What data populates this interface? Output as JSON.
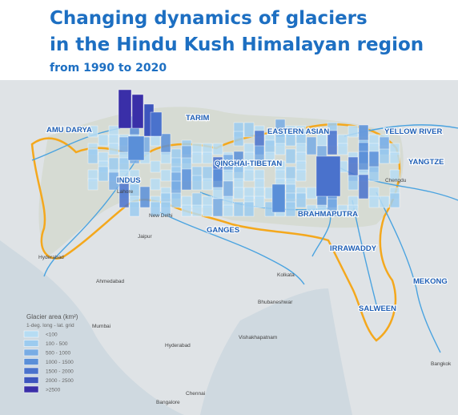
{
  "header": {
    "title_line1": "Changing dynamics of glaciers",
    "title_line2": "in the Hindu Kush Himalayan region",
    "subtitle": "from 1990 to 2020"
  },
  "basins": [
    "AMU DARYA",
    "TARIM",
    "EASTERN ASIAN",
    "YELLOW RIVER",
    "QINGHAI-TIBETAN",
    "YANGTZE",
    "INDUS",
    "BRAHMAPUTRA",
    "GANGES",
    "IRRAWADDY",
    "MEKONG",
    "SALWEEN"
  ],
  "cities": [
    "Lahore",
    "New Delhi",
    "Jaipur",
    "Hyderabad",
    "Ahmedabad",
    "Kolkata",
    "Bhubaneshwar",
    "Mumbai",
    "Hyderabad",
    "Vishakhapatnam",
    "Chennai",
    "Bangalore",
    "Bangkok",
    "Chengdu"
  ],
  "legend": {
    "title": "Glacier area (km²)",
    "note": "1-deg. long - lat. grid",
    "classes": [
      {
        "label": "<100",
        "color": "#b6dcf3"
      },
      {
        "label": "100 - 500",
        "color": "#9ccbef"
      },
      {
        "label": "500 - 1000",
        "color": "#78ace4"
      },
      {
        "label": "1000 - 1500",
        "color": "#5a8fd8"
      },
      {
        "label": "1500 - 2000",
        "color": "#4a72cc"
      },
      {
        "label": "2000 - 2500",
        "color": "#3d55bd"
      },
      {
        "label": ">2500",
        "color": "#3a2fa8"
      }
    ]
  }
}
